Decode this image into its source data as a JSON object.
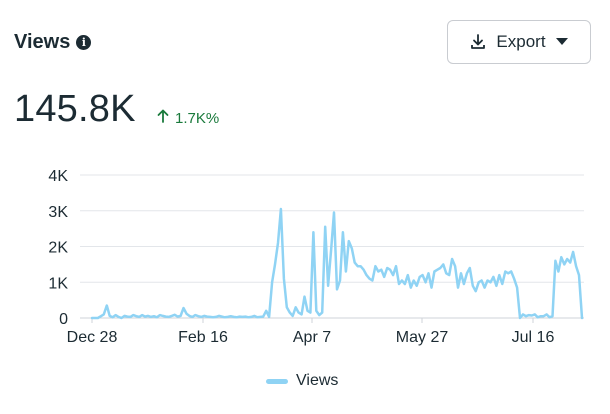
{
  "header": {
    "title": "Views",
    "info_icon": "info-icon"
  },
  "export_button": {
    "label": "Export",
    "icon": "download-icon",
    "caret": "caret-down-icon"
  },
  "summary": {
    "total": "145.8K",
    "delta": "1.7K%",
    "delta_icon": "arrow-up-icon",
    "delta_color": "#1a7a3c"
  },
  "chart_data": {
    "type": "line",
    "series": [
      {
        "name": "Views",
        "color": "#8fd3f4",
        "values": [
          0,
          0,
          0,
          50,
          100,
          350,
          60,
          20,
          80,
          30,
          0,
          60,
          40,
          30,
          80,
          50,
          30,
          80,
          40,
          60,
          30,
          50,
          20,
          80,
          60,
          40,
          30,
          60,
          90,
          40,
          60,
          280,
          120,
          60,
          30,
          80,
          50,
          30,
          60,
          40,
          30,
          20,
          30,
          60,
          40,
          20,
          30,
          50,
          30,
          20,
          40,
          30,
          40,
          20,
          30,
          60,
          20,
          30,
          40,
          200,
          30,
          1000,
          1500,
          2100,
          3050,
          1100,
          300,
          150,
          60,
          300,
          150,
          100,
          600,
          200,
          150,
          2400,
          200,
          80,
          150,
          2550,
          900,
          1900,
          2950,
          800,
          1050,
          2400,
          1300,
          2150,
          1950,
          1550,
          1450,
          1450,
          1350,
          1200,
          1100,
          1050,
          1450,
          1300,
          1350,
          1150,
          1400,
          1350,
          1200,
          1450,
          950,
          1050,
          950,
          1200,
          850,
          1050,
          900,
          1150,
          1200,
          1000,
          1250,
          850,
          1300,
          1350,
          1400,
          1500,
          1250,
          1200,
          1650,
          1450,
          850,
          1250,
          950,
          1250,
          1400,
          900,
          750,
          1000,
          1050,
          850,
          1050,
          1000,
          1150,
          900,
          1200,
          950,
          1300,
          1250,
          1300,
          1100,
          850,
          0,
          100,
          50,
          80,
          70,
          100,
          20,
          50,
          50,
          100,
          20,
          50,
          1600,
          1300,
          1700,
          1500,
          1650,
          1550,
          1850,
          1450,
          1200,
          0
        ]
      }
    ],
    "x_tick_labels": [
      "Dec 28",
      "Feb 16",
      "Apr 7",
      "May 27",
      "Jul 16"
    ],
    "y_tick_labels": [
      "0",
      "1K",
      "2K",
      "3K",
      "4K"
    ],
    "y_ticks": [
      0,
      1000,
      2000,
      3000,
      4000
    ],
    "ylim": [
      0,
      4000
    ],
    "grid": true,
    "legend_position": "bottom"
  },
  "legend": {
    "label": "Views"
  }
}
